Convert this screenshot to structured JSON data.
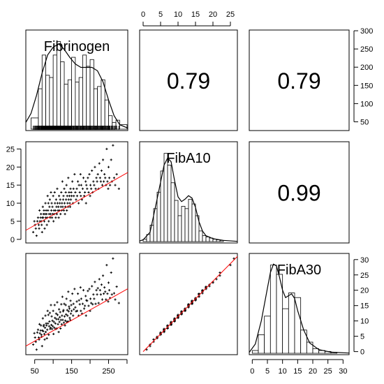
{
  "chart_data": {
    "type": "scatter-matrix",
    "variables": [
      "Fibrinogen",
      "FibA10",
      "FibA30"
    ],
    "correlations": [
      {
        "row": 0,
        "col": 1,
        "value": "0.79"
      },
      {
        "row": 0,
        "col": 2,
        "value": "0.79"
      },
      {
        "row": 1,
        "col": 2,
        "value": "0.99"
      }
    ],
    "axes": {
      "Fibrinogen": {
        "range": [
          26,
          302
        ],
        "ticks": [
          50,
          100,
          150,
          200,
          250,
          300
        ],
        "tick_labels": [
          "50",
          "",
          "150",
          "",
          "250",
          ""
        ]
      },
      "FibA10": {
        "range": [
          -1,
          27
        ],
        "ticks": [
          0,
          5,
          10,
          15,
          20,
          25
        ],
        "tick_labels": [
          "0",
          "5",
          "10",
          "15",
          "20",
          "25"
        ]
      },
      "FibA30": {
        "range": [
          -1,
          32
        ],
        "ticks": [
          0,
          5,
          10,
          15,
          20,
          25,
          30
        ],
        "tick_labels": [
          "0",
          "5",
          "10",
          "15",
          "20",
          "25",
          "30"
        ]
      }
    },
    "fit_lines": {
      "FibA10_vs_Fibrinogen": [
        [
          26,
          2.5
        ],
        [
          302,
          18.5
        ]
      ],
      "FibA30_vs_Fibrinogen": [
        [
          26,
          1.8
        ],
        [
          302,
          20.5
        ]
      ],
      "FibA30_vs_FibA10": [
        [
          0,
          0
        ],
        [
          27,
          31
        ]
      ]
    },
    "histograms": {
      "Fibrinogen": {
        "bins": [
          [
            40,
            60,
            0.5
          ],
          [
            60,
            70,
            1.8
          ],
          [
            70,
            80,
            3.3
          ],
          [
            80,
            90,
            2.4
          ],
          [
            90,
            100,
            2.3
          ],
          [
            100,
            110,
            3.3
          ],
          [
            110,
            120,
            3.9
          ],
          [
            120,
            130,
            3.0
          ],
          [
            130,
            140,
            2.0
          ],
          [
            140,
            150,
            2.2
          ],
          [
            150,
            160,
            3.2
          ],
          [
            160,
            170,
            2.1
          ],
          [
            170,
            180,
            2.3
          ],
          [
            180,
            190,
            3.3
          ],
          [
            190,
            200,
            2.8
          ],
          [
            200,
            210,
            3.1
          ],
          [
            210,
            220,
            1.8
          ],
          [
            220,
            230,
            1.9
          ],
          [
            230,
            240,
            2.2
          ],
          [
            240,
            250,
            1.3
          ],
          [
            250,
            260,
            0.6
          ],
          [
            260,
            270,
            0.3
          ],
          [
            270,
            280,
            0.4
          ],
          [
            280,
            300,
            0.2
          ]
        ],
        "density": [
          [
            26,
            0.3
          ],
          [
            40,
            0.7
          ],
          [
            55,
            1.5
          ],
          [
            70,
            2.5
          ],
          [
            85,
            3.3
          ],
          [
            100,
            3.65
          ],
          [
            115,
            3.8
          ],
          [
            130,
            3.55
          ],
          [
            145,
            3.2
          ],
          [
            160,
            2.9
          ],
          [
            175,
            2.75
          ],
          [
            190,
            2.75
          ],
          [
            205,
            2.75
          ],
          [
            220,
            2.6
          ],
          [
            235,
            2.1
          ],
          [
            250,
            1.3
          ],
          [
            265,
            0.6
          ],
          [
            280,
            0.2
          ],
          [
            302,
            0.05
          ]
        ],
        "rug": true
      },
      "FibA10": {
        "bins": [
          [
            0,
            1,
            0.2
          ],
          [
            1,
            2,
            0.6
          ],
          [
            2,
            3,
            1.4
          ],
          [
            3,
            4,
            2.8
          ],
          [
            4,
            5,
            4.2
          ],
          [
            5,
            6,
            6.0
          ],
          [
            6,
            7,
            7.5
          ],
          [
            7,
            8,
            6.5
          ],
          [
            8,
            9,
            5.0
          ],
          [
            9,
            10,
            3.5
          ],
          [
            10,
            11,
            2.2
          ],
          [
            11,
            12,
            3.0
          ],
          [
            12,
            13,
            2.8
          ],
          [
            13,
            14,
            3.6
          ],
          [
            14,
            15,
            3.2
          ],
          [
            15,
            16,
            2.2
          ],
          [
            16,
            17,
            0.9
          ],
          [
            17,
            18,
            0.5
          ],
          [
            18,
            19,
            0.4
          ],
          [
            19,
            20,
            0.3
          ],
          [
            20,
            21,
            0.2
          ],
          [
            21,
            22,
            0.15
          ],
          [
            22,
            23,
            0.1
          ]
        ],
        "density": [
          [
            -1,
            0.05
          ],
          [
            0,
            0.15
          ],
          [
            2,
            0.8
          ],
          [
            4,
            3.6
          ],
          [
            6,
            6.5
          ],
          [
            7,
            7.1
          ],
          [
            8,
            6.8
          ],
          [
            9,
            5.2
          ],
          [
            10,
            3.8
          ],
          [
            11,
            3.4
          ],
          [
            12,
            3.6
          ],
          [
            13,
            3.9
          ],
          [
            14,
            3.7
          ],
          [
            15,
            2.9
          ],
          [
            16,
            1.7
          ],
          [
            17,
            0.9
          ],
          [
            18,
            0.5
          ],
          [
            20,
            0.25
          ],
          [
            23,
            0.1
          ],
          [
            27,
            0.02
          ]
        ]
      },
      "FibA30": {
        "bins": [
          [
            0,
            2,
            0.3
          ],
          [
            2,
            4,
            2.0
          ],
          [
            4,
            6,
            4.0
          ],
          [
            6,
            8,
            9.5
          ],
          [
            8,
            10,
            8.5
          ],
          [
            10,
            12,
            4.8
          ],
          [
            12,
            14,
            6.5
          ],
          [
            14,
            16,
            6.0
          ],
          [
            16,
            18,
            2.5
          ],
          [
            18,
            20,
            1.2
          ],
          [
            20,
            22,
            0.5
          ],
          [
            22,
            24,
            0.3
          ],
          [
            24,
            26,
            0.2
          ],
          [
            26,
            28,
            0.1
          ]
        ],
        "density": [
          [
            -1,
            0.1
          ],
          [
            1,
            1.0
          ],
          [
            3,
            3.5
          ],
          [
            5,
            7.0
          ],
          [
            6,
            8.7
          ],
          [
            7,
            9.6
          ],
          [
            8,
            9.4
          ],
          [
            9,
            8.2
          ],
          [
            10,
            6.8
          ],
          [
            11,
            6.0
          ],
          [
            12,
            6.2
          ],
          [
            13,
            6.4
          ],
          [
            14,
            5.9
          ],
          [
            15,
            4.6
          ],
          [
            17,
            2.5
          ],
          [
            19,
            1.1
          ],
          [
            22,
            0.4
          ],
          [
            26,
            0.12
          ],
          [
            32,
            0.02
          ]
        ]
      }
    },
    "pairs": [
      [
        46,
        2
      ],
      [
        49,
        5
      ],
      [
        51,
        4
      ],
      [
        53,
        3
      ],
      [
        55,
        1
      ],
      [
        57,
        5
      ],
      [
        59,
        6
      ],
      [
        61,
        4
      ],
      [
        62,
        3
      ],
      [
        63,
        8
      ],
      [
        64,
        5
      ],
      [
        66,
        6
      ],
      [
        67,
        7
      ],
      [
        68,
        5
      ],
      [
        69,
        4
      ],
      [
        70,
        2
      ],
      [
        71,
        6
      ],
      [
        72,
        9
      ],
      [
        73,
        6
      ],
      [
        74,
        7
      ],
      [
        75,
        8
      ],
      [
        76,
        5
      ],
      [
        77,
        3
      ],
      [
        78,
        7
      ],
      [
        79,
        10
      ],
      [
        80,
        6
      ],
      [
        81,
        8
      ],
      [
        82,
        7
      ],
      [
        83,
        4
      ],
      [
        84,
        6
      ],
      [
        85,
        12
      ],
      [
        86,
        8
      ],
      [
        87,
        10
      ],
      [
        88,
        5
      ],
      [
        89,
        7
      ],
      [
        90,
        9
      ],
      [
        91,
        11
      ],
      [
        92,
        6
      ],
      [
        93,
        7
      ],
      [
        94,
        13
      ],
      [
        95,
        8
      ],
      [
        96,
        10
      ],
      [
        97,
        6
      ],
      [
        98,
        9
      ],
      [
        99,
        7
      ],
      [
        100,
        12
      ],
      [
        101,
        5
      ],
      [
        102,
        8
      ],
      [
        103,
        7
      ],
      [
        104,
        13
      ],
      [
        105,
        10
      ],
      [
        106,
        8
      ],
      [
        107,
        6
      ],
      [
        108,
        11
      ],
      [
        109,
        9
      ],
      [
        110,
        7
      ],
      [
        111,
        14
      ],
      [
        112,
        10
      ],
      [
        113,
        8
      ],
      [
        114,
        9
      ],
      [
        115,
        6
      ],
      [
        116,
        12
      ],
      [
        117,
        8
      ],
      [
        118,
        10
      ],
      [
        119,
        11
      ],
      [
        120,
        7
      ],
      [
        121,
        9
      ],
      [
        122,
        13
      ],
      [
        123,
        8
      ],
      [
        124,
        10
      ],
      [
        125,
        16
      ],
      [
        126,
        9
      ],
      [
        127,
        11
      ],
      [
        128,
        12
      ],
      [
        129,
        8
      ],
      [
        130,
        14
      ],
      [
        131,
        10
      ],
      [
        132,
        7
      ],
      [
        133,
        9
      ],
      [
        134,
        13
      ],
      [
        135,
        11
      ],
      [
        136,
        15
      ],
      [
        137,
        8
      ],
      [
        138,
        12
      ],
      [
        139,
        10
      ],
      [
        140,
        9
      ],
      [
        141,
        17
      ],
      [
        142,
        11
      ],
      [
        143,
        13
      ],
      [
        144,
        12
      ],
      [
        145,
        10
      ],
      [
        146,
        9
      ],
      [
        147,
        14
      ],
      [
        148,
        11
      ],
      [
        149,
        13
      ],
      [
        150,
        12
      ],
      [
        152,
        16
      ],
      [
        154,
        10
      ],
      [
        155,
        14
      ],
      [
        156,
        12
      ],
      [
        158,
        18
      ],
      [
        160,
        13
      ],
      [
        162,
        11
      ],
      [
        164,
        14
      ],
      [
        165,
        12
      ],
      [
        167,
        16
      ],
      [
        169,
        10
      ],
      [
        170,
        15
      ],
      [
        172,
        13
      ],
      [
        174,
        18
      ],
      [
        175,
        12
      ],
      [
        176,
        15
      ],
      [
        178,
        11
      ],
      [
        180,
        14
      ],
      [
        182,
        17
      ],
      [
        184,
        12
      ],
      [
        186,
        13
      ],
      [
        188,
        16
      ],
      [
        189,
        10
      ],
      [
        190,
        15
      ],
      [
        192,
        14
      ],
      [
        194,
        17
      ],
      [
        196,
        13
      ],
      [
        198,
        18
      ],
      [
        200,
        12
      ],
      [
        201,
        15
      ],
      [
        203,
        14
      ],
      [
        205,
        19
      ],
      [
        207,
        13
      ],
      [
        209,
        16
      ],
      [
        211,
        15
      ],
      [
        213,
        20
      ],
      [
        215,
        14
      ],
      [
        217,
        17
      ],
      [
        219,
        16
      ],
      [
        221,
        18
      ],
      [
        223,
        14
      ],
      [
        225,
        21
      ],
      [
        227,
        17
      ],
      [
        229,
        16
      ],
      [
        231,
        19
      ],
      [
        233,
        15
      ],
      [
        235,
        22
      ],
      [
        237,
        16
      ],
      [
        239,
        18
      ],
      [
        241,
        17
      ],
      [
        243,
        15
      ],
      [
        245,
        25
      ],
      [
        247,
        16
      ],
      [
        249,
        14
      ],
      [
        250,
        20
      ],
      [
        252,
        17
      ],
      [
        254,
        15
      ],
      [
        257,
        22
      ],
      [
        259,
        16
      ],
      [
        262,
        26
      ],
      [
        265,
        17
      ],
      [
        268,
        15
      ],
      [
        272,
        18
      ],
      [
        278,
        14
      ]
    ]
  }
}
